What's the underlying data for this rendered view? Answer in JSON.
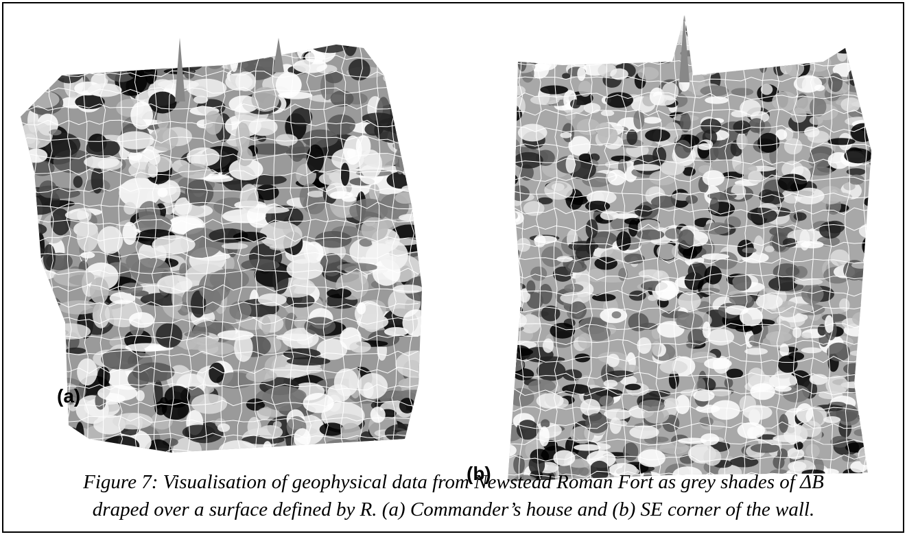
{
  "panels": [
    {
      "label": "(a)"
    },
    {
      "label": "(b)"
    }
  ],
  "caption": {
    "lines": [
      "Figure 7: Visualisation of geophysical data from Newstead Roman Fort as grey shades of ΔB",
      "draped over a surface defined by R. (a) Commander’s house and (b) SE corner of the wall."
    ]
  }
}
